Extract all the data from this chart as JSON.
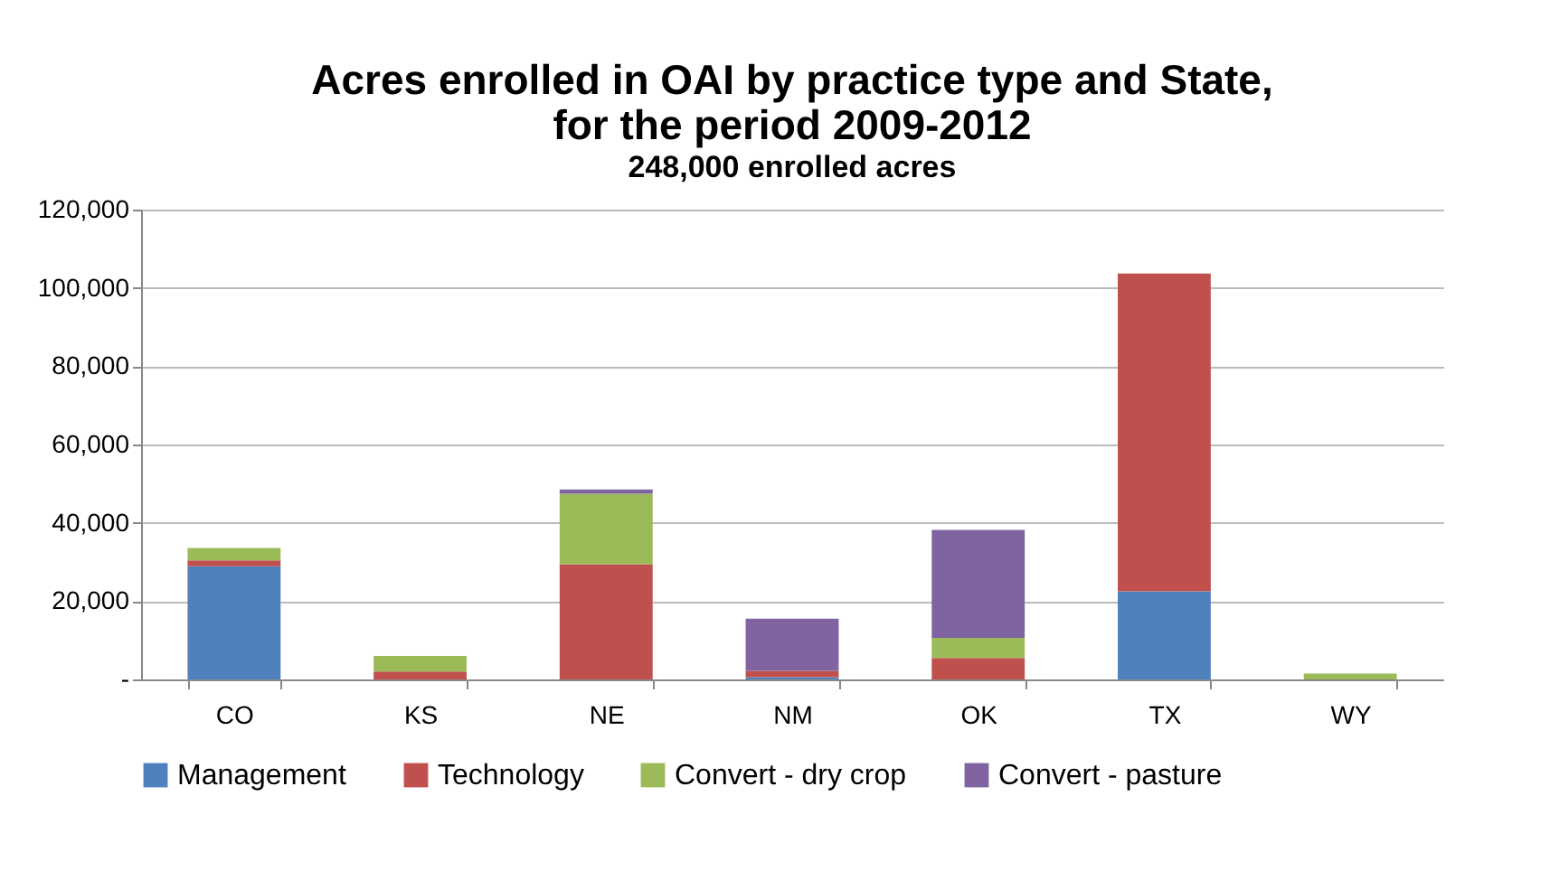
{
  "chart_data": {
    "type": "bar",
    "title": "Acres enrolled in OAI by practice type and State, for the period 2009-2012",
    "subtitle": "248,000 enrolled acres",
    "categories": [
      "CO",
      "KS",
      "NE",
      "NM",
      "OK",
      "TX",
      "WY"
    ],
    "stacked": true,
    "series": [
      {
        "name": "Management",
        "color": "#4f81bd",
        "values": [
          28900,
          0,
          0,
          600,
          0,
          22500,
          0
        ]
      },
      {
        "name": "Technology",
        "color": "#c0504d",
        "values": [
          1500,
          2000,
          29400,
          1600,
          5500,
          81200,
          0
        ]
      },
      {
        "name": "Convert - dry crop",
        "color": "#9bbb59",
        "values": [
          3200,
          4000,
          18000,
          0,
          5100,
          0,
          1500
        ]
      },
      {
        "name": "Convert - pasture",
        "color": "#8064a2",
        "values": [
          0,
          0,
          1100,
          13300,
          27600,
          0,
          0
        ]
      }
    ],
    "ylim": [
      0,
      120000
    ],
    "yticks": [
      {
        "value": 0,
        "label": "-"
      },
      {
        "value": 20000,
        "label": "20,000"
      },
      {
        "value": 40000,
        "label": "40,000"
      },
      {
        "value": 60000,
        "label": "60,000"
      },
      {
        "value": 80000,
        "label": "80,000"
      },
      {
        "value": 100000,
        "label": "100,000"
      },
      {
        "value": 120000,
        "label": "120,000"
      }
    ],
    "grid": "y",
    "legend": "bottom"
  }
}
